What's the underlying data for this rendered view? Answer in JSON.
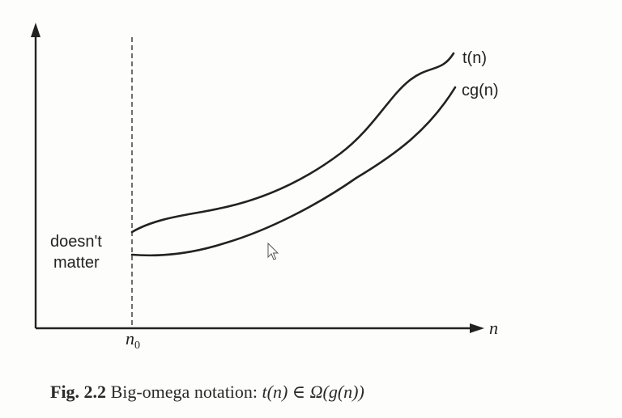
{
  "diagram": {
    "curves": {
      "upper_label": "t(n)",
      "lower_label": "cg(n)"
    },
    "x_axis_label": "n",
    "threshold_label_base": "n",
    "threshold_label_sub": "0",
    "region_label_line1": "doesn't",
    "region_label_line2": "matter"
  },
  "caption": {
    "figure_label": "Fig. 2.2",
    "text": "Big-omega notation:",
    "formula": "t(n) ∈ Ω(g(n))"
  },
  "colors": {
    "ink": "#222222",
    "background": "#fdfdfb"
  },
  "icons": {
    "cursor": "mouse-pointer-icon"
  }
}
